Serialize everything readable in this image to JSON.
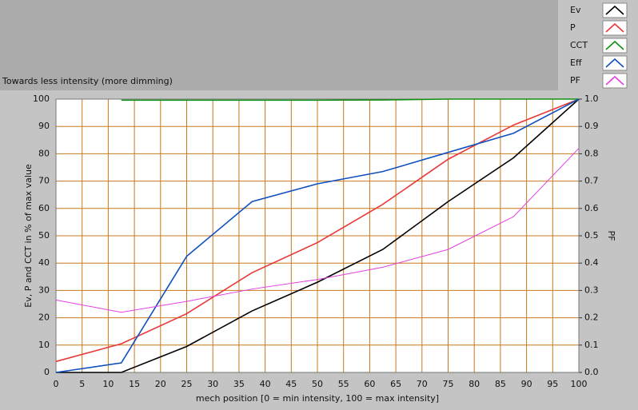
{
  "chart_data": {
    "type": "line",
    "title": "Towards less intensity (more dimming)",
    "xlabel": "mech position [0 = min intensity, 100 = max intensity]",
    "ylabel": "Ev, P and CCT in % of max value",
    "y2label": "PF",
    "x": [
      0,
      12.5,
      25,
      37.5,
      50,
      62.5,
      75,
      87.5,
      100
    ],
    "series": [
      {
        "name": "Ev",
        "color": "#000000",
        "values": [
          0,
          0,
          9.5,
          22.5,
          33,
          45,
          62.5,
          78.5,
          100
        ]
      },
      {
        "name": "P",
        "color": "#e83838",
        "values": [
          4,
          10.5,
          21.5,
          36.5,
          47.5,
          61.5,
          78,
          90.5,
          100
        ]
      },
      {
        "name": "CCT",
        "color": "#109010",
        "values": [
          null,
          99.6,
          99.6,
          99.6,
          99.6,
          99.7,
          100,
          100,
          100
        ]
      },
      {
        "name": "Eff",
        "color": "#1050c0",
        "values": [
          0,
          3.5,
          42.5,
          62.5,
          69,
          73.5,
          80.5,
          87.5,
          100
        ]
      },
      {
        "name": "PF",
        "color": "#e040e0",
        "axis": "y2",
        "values": [
          0.265,
          0.22,
          0.26,
          0.305,
          0.34,
          0.385,
          0.45,
          0.57,
          0.82
        ]
      }
    ],
    "xlim": [
      0,
      100
    ],
    "xticks": [
      0,
      5,
      10,
      15,
      20,
      25,
      30,
      35,
      40,
      45,
      50,
      55,
      60,
      65,
      70,
      75,
      80,
      85,
      90,
      95,
      100
    ],
    "ylim": [
      0,
      100
    ],
    "yticks": [
      0,
      10,
      20,
      30,
      40,
      50,
      60,
      70,
      80,
      90,
      100
    ],
    "y2lim": [
      0,
      1
    ],
    "y2ticks": [
      {
        "value": 0,
        "label": "0.0"
      },
      0.1,
      0.2,
      0.3,
      0.4,
      0.5,
      0.6,
      0.7,
      0.8,
      0.9,
      {
        "value": 1,
        "label": "1.0"
      }
    ],
    "grid": true
  }
}
